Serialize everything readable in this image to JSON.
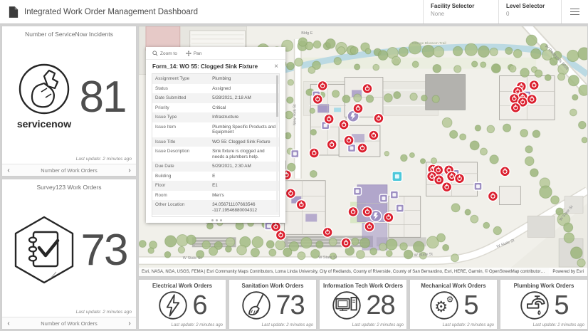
{
  "header": {
    "title": "Integrated Work Order Management Dashboard",
    "facility_selector": {
      "label": "Facility Selector",
      "value": "None"
    },
    "level_selector": {
      "label": "Level Selector",
      "value": "0"
    }
  },
  "panels": {
    "servicenow": {
      "title": "Number of ServiceNow Incidents",
      "value": "81",
      "brand": "servicenow",
      "last_update": "Last update: 2 minutes ago",
      "footer_label": "Number of Work Orders"
    },
    "survey123": {
      "title": "Survey123 Work Orders",
      "value": "73",
      "last_update": "Last update: 2 minutes ago",
      "footer_label": "Number of Work Orders"
    }
  },
  "map": {
    "popup": {
      "zoom_to_label": "Zoom to",
      "pan_label": "Pan",
      "title": "Form_14: WO 55: Clogged Sink Fixture",
      "rows": [
        {
          "label": "Assignment Type",
          "value": "Plumbing"
        },
        {
          "label": "Status",
          "value": "Assigned"
        },
        {
          "label": "Date Submitted",
          "value": "5/28/2021, 2:18 AM"
        },
        {
          "label": "Priority",
          "value": "Critical"
        },
        {
          "label": "Issue Type",
          "value": "Infrastructure"
        },
        {
          "label": "Issue Item",
          "value": "Plumbing Specific Products and Equipment"
        },
        {
          "label": "Issue Title",
          "value": "WO 55: Clogged Sink Fixture"
        },
        {
          "label": "Issue Description",
          "value": "Sink fixture is clogged and needs a plumbers help."
        },
        {
          "label": "Due Date",
          "value": "5/29/2021, 2:30 AM"
        },
        {
          "label": "Building",
          "value": "E"
        },
        {
          "label": "Floor",
          "value": "E1"
        },
        {
          "label": "Room",
          "value": "Men's"
        },
        {
          "label": "Other Location",
          "value": "34.056711107663546\n-117.19546880004312"
        }
      ]
    },
    "labels": {
      "bldg_e": "Bldg E",
      "orange_blossom_trail": "Orange Blossom Trail",
      "w_redlands_blvd": "W Redlands Blvd",
      "new_york_st": "New York St",
      "state_st": [
        "W State St",
        "W State St",
        "W State St",
        "W State St",
        "W State St"
      ]
    },
    "attribution": "Esri, NASA, NGA, USGS, FEMA | Esri Community Maps Contributors, Loma Linda University, City of Redlands, County of Riverside, County of San Bernardino, Esri, HERE, Garmin, © OpenStreetMap contributors, Microsoft, SafeGraph, INCREMENT ...",
    "powered_by": "Powered by Esri",
    "marker_colors": {
      "work_order_red": "#db1f2e",
      "asset_purple": "#9d8fc2",
      "selected_cyan": "#4cc8da"
    }
  },
  "stats": {
    "cards": [
      {
        "title": "Electrical Work Orders",
        "value": "6",
        "icon": "lightning-bolt-icon",
        "last_update": "Last update: 2 minutes ago"
      },
      {
        "title": "Sanitation Work Orders",
        "value": "73",
        "icon": "broom-icon",
        "last_update": "Last update: 2 minutes ago"
      },
      {
        "title": "Information Tech Work Orders",
        "value": "28",
        "icon": "computer-icon",
        "last_update": "Last update: 2 minutes ago"
      },
      {
        "title": "Mechanical Work Orders",
        "value": "5",
        "icon": "gears-icon",
        "last_update": "Last update: 2 minutes ago"
      },
      {
        "title": "Plumbing Work Orders",
        "value": "5",
        "icon": "faucet-icon",
        "last_update": "Last update: 2 minutes ago"
      }
    ]
  }
}
